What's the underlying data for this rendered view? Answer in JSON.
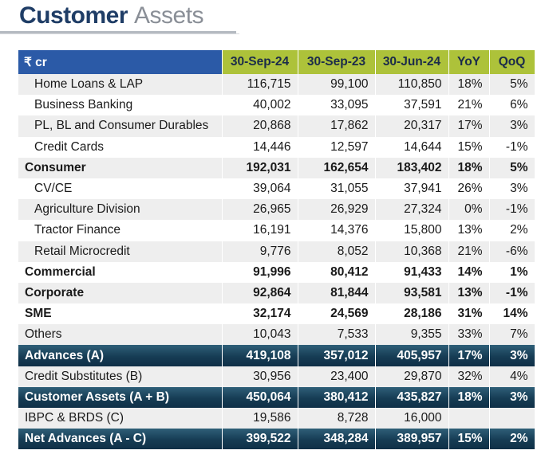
{
  "title": {
    "part1": "Customer",
    "part2": "Assets"
  },
  "table": {
    "headers": [
      "₹ cr",
      "30-Sep-24",
      "30-Sep-23",
      "30-Jun-24",
      "YoY",
      "QoQ"
    ],
    "rows": [
      {
        "label": "Home Loans & LAP",
        "values": [
          "116,715",
          "99,100",
          "110,850",
          "18%",
          "5%"
        ],
        "style": "indent"
      },
      {
        "label": "Business Banking",
        "values": [
          "40,002",
          "33,095",
          "37,591",
          "21%",
          "6%"
        ],
        "style": "indent"
      },
      {
        "label": "PL, BL and Consumer Durables",
        "values": [
          "20,868",
          "17,862",
          "20,317",
          "17%",
          "3%"
        ],
        "style": "indent"
      },
      {
        "label": "Credit Cards",
        "values": [
          "14,446",
          "12,597",
          "14,644",
          "15%",
          "-1%"
        ],
        "style": "indent"
      },
      {
        "label": "Consumer",
        "values": [
          "192,031",
          "162,654",
          "183,402",
          "18%",
          "5%"
        ],
        "style": "bold"
      },
      {
        "label": "CV/CE",
        "values": [
          "39,064",
          "31,055",
          "37,941",
          "26%",
          "3%"
        ],
        "style": "indent"
      },
      {
        "label": "Agriculture Division",
        "values": [
          "26,965",
          "26,929",
          "27,324",
          "0%",
          "-1%"
        ],
        "style": "indent"
      },
      {
        "label": "Tractor Finance",
        "values": [
          "16,191",
          "14,376",
          "15,800",
          "13%",
          "2%"
        ],
        "style": "indent"
      },
      {
        "label": "Retail Microcredit",
        "values": [
          "9,776",
          "8,052",
          "10,368",
          "21%",
          "-6%"
        ],
        "style": "indent"
      },
      {
        "label": "Commercial",
        "values": [
          "91,996",
          "80,412",
          "91,433",
          "14%",
          "1%"
        ],
        "style": "bold"
      },
      {
        "label": "Corporate",
        "values": [
          "92,864",
          "81,844",
          "93,581",
          "13%",
          "-1%"
        ],
        "style": "bold"
      },
      {
        "label": "SME",
        "values": [
          "32,174",
          "24,569",
          "28,186",
          "31%",
          "14%"
        ],
        "style": "bold"
      },
      {
        "label": "Others",
        "values": [
          "10,043",
          "7,533",
          "9,355",
          "33%",
          "7%"
        ],
        "style": "normal"
      },
      {
        "label": "Advances (A)",
        "values": [
          "419,108",
          "357,012",
          "405,957",
          "17%",
          "3%"
        ],
        "style": "dark"
      },
      {
        "label": "Credit Substitutes (B)",
        "values": [
          "30,956",
          "23,400",
          "29,870",
          "32%",
          "4%"
        ],
        "style": "normal"
      },
      {
        "label": "Customer Assets (A + B)",
        "values": [
          "450,064",
          "380,412",
          "435,827",
          "18%",
          "3%"
        ],
        "style": "dark"
      },
      {
        "label": "IBPC & BRDS (C)",
        "values": [
          "19,586",
          "8,728",
          "16,000",
          "",
          ""
        ],
        "style": "normal"
      },
      {
        "label": "Net Advances (A - C)",
        "values": [
          "399,522",
          "348,284",
          "389,957",
          "15%",
          "2%"
        ],
        "style": "dark"
      }
    ]
  }
}
